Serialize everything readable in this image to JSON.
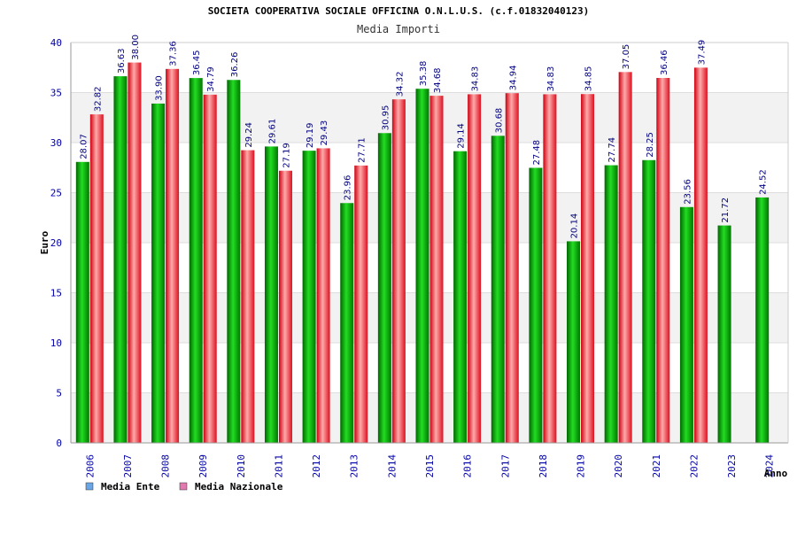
{
  "chart_data": {
    "type": "bar",
    "title": "SOCIETA COOPERATIVA SOCIALE OFFICINA O.N.L.U.S. (c.f.01832040123)",
    "subtitle": "Media Importi",
    "xlabel": "Anno",
    "ylabel": "Euro",
    "ylim": [
      0,
      40
    ],
    "yticks": [
      0,
      5,
      10,
      15,
      20,
      25,
      30,
      35,
      40
    ],
    "grid": true,
    "legend_position": "bottom-left",
    "categories": [
      "2006",
      "2007",
      "2008",
      "2009",
      "2010",
      "2011",
      "2012",
      "2013",
      "2014",
      "2015",
      "2016",
      "2017",
      "2018",
      "2019",
      "2020",
      "2021",
      "2022",
      "2023",
      "2024"
    ],
    "series": [
      {
        "name": "Media Ente",
        "color": "#00b000",
        "legend_color": "#6aa6e6",
        "values": [
          28.07,
          36.63,
          33.9,
          36.45,
          36.26,
          29.61,
          29.19,
          23.96,
          30.95,
          35.38,
          29.14,
          30.68,
          27.48,
          20.14,
          27.74,
          28.25,
          23.56,
          21.72,
          24.52
        ],
        "labels": [
          "28.07",
          "36.63",
          "33.90",
          "36.45",
          "36.26",
          "29.61",
          "29.19",
          "23.96",
          "30.95",
          "35.38",
          "29.14",
          "30.68",
          "27.48",
          "20.14",
          "27.74",
          "28.25",
          "23.56",
          "21.72",
          "24.52"
        ]
      },
      {
        "name": "Media Nazionale",
        "color": "#e82030",
        "legend_color": "#e07ab0",
        "values": [
          32.82,
          38.0,
          37.36,
          34.79,
          29.24,
          27.19,
          29.43,
          27.71,
          34.32,
          34.68,
          34.83,
          34.94,
          34.83,
          34.85,
          37.05,
          36.46,
          37.49,
          null,
          null
        ],
        "labels": [
          "32.82",
          "38.00",
          "37.36",
          "34.79",
          "29.24",
          "27.19",
          "29.43",
          "27.71",
          "34.32",
          "34.68",
          "34.83",
          "34.94",
          "34.83",
          "34.85",
          "37.05",
          "36.46",
          "37.49",
          "",
          ""
        ]
      }
    ]
  }
}
